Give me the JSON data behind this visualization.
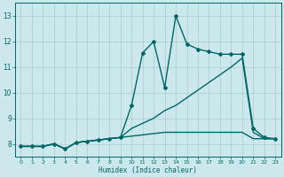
{
  "xlabel": "Humidex (Indice chaleur)",
  "ylabel": "",
  "bg_color": "#cce8ec",
  "grid_color": "#aacccc",
  "line_color": "#006666",
  "xlim": [
    -0.5,
    23.5
  ],
  "ylim": [
    7.5,
    13.5
  ],
  "xticks": [
    0,
    1,
    2,
    3,
    4,
    5,
    6,
    7,
    8,
    9,
    10,
    11,
    12,
    13,
    14,
    15,
    16,
    17,
    18,
    19,
    20,
    21,
    22,
    23
  ],
  "yticks": [
    8,
    9,
    10,
    11,
    12,
    13
  ],
  "series": [
    {
      "x": [
        0,
        1,
        2,
        3,
        4,
        5,
        6,
        7,
        8,
        9,
        10,
        11,
        12,
        13,
        14,
        15,
        16,
        17,
        18,
        19,
        20,
        21,
        22,
        23
      ],
      "y": [
        7.9,
        7.9,
        7.9,
        8.0,
        7.8,
        8.05,
        8.1,
        8.15,
        8.2,
        8.25,
        8.3,
        8.35,
        8.4,
        8.45,
        8.45,
        8.45,
        8.45,
        8.45,
        8.45,
        8.45,
        8.45,
        8.2,
        8.2,
        8.2
      ],
      "marker": null,
      "linewidth": 1.0
    },
    {
      "x": [
        0,
        1,
        2,
        3,
        4,
        5,
        6,
        7,
        8,
        9,
        10,
        11,
        12,
        13,
        14,
        15,
        16,
        17,
        18,
        19,
        20,
        21,
        22,
        23
      ],
      "y": [
        7.9,
        7.9,
        7.9,
        8.0,
        7.8,
        8.05,
        8.1,
        8.15,
        8.2,
        8.25,
        8.6,
        8.8,
        9.0,
        9.3,
        9.5,
        9.8,
        10.1,
        10.4,
        10.7,
        11.0,
        11.35,
        8.45,
        8.2,
        8.2
      ],
      "marker": null,
      "linewidth": 1.0
    },
    {
      "x": [
        0,
        1,
        2,
        3,
        4,
        5,
        6,
        7,
        8,
        9,
        10,
        11,
        12,
        13,
        14,
        15,
        16,
        17,
        18,
        19,
        20,
        21,
        22,
        23
      ],
      "y": [
        7.9,
        7.9,
        7.9,
        8.0,
        7.8,
        8.05,
        8.1,
        8.15,
        8.2,
        8.25,
        9.5,
        11.55,
        12.0,
        10.2,
        13.0,
        11.9,
        11.7,
        11.6,
        11.5,
        11.5,
        11.5,
        8.6,
        8.25,
        8.2
      ],
      "marker": "D",
      "linewidth": 1.0
    }
  ]
}
